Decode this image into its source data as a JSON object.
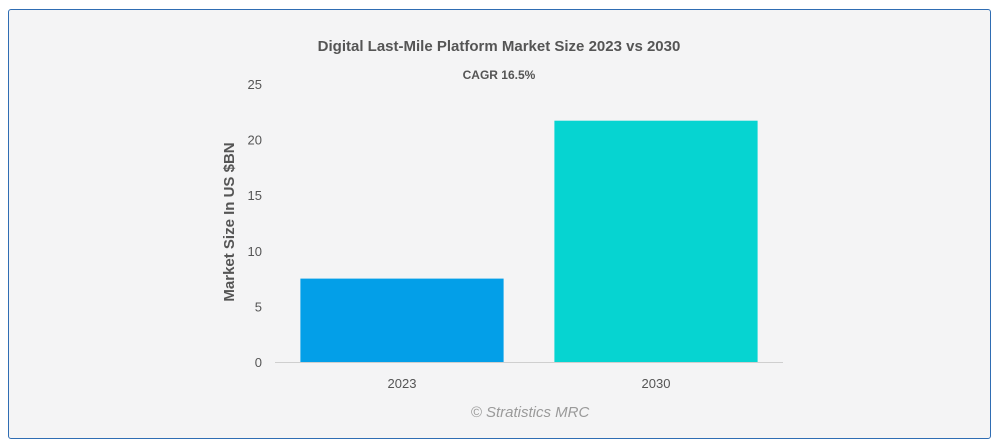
{
  "chart_data": {
    "type": "bar",
    "title": "Digital Last-Mile Platform Market Size 2023 vs 2030",
    "subtitle": "CAGR 16.5%",
    "xlabel": "",
    "ylabel": "Market Size In US $BN",
    "categories": [
      "2023",
      "2030"
    ],
    "values": [
      7.5,
      21.7
    ],
    "ylim": [
      0,
      25
    ],
    "yticks": [
      0,
      5,
      10,
      15,
      20,
      25
    ],
    "grid": false,
    "legend": "none",
    "colors": [
      "#039fe8",
      "#06d4d1"
    ]
  },
  "credit": "© Stratistics MRC"
}
